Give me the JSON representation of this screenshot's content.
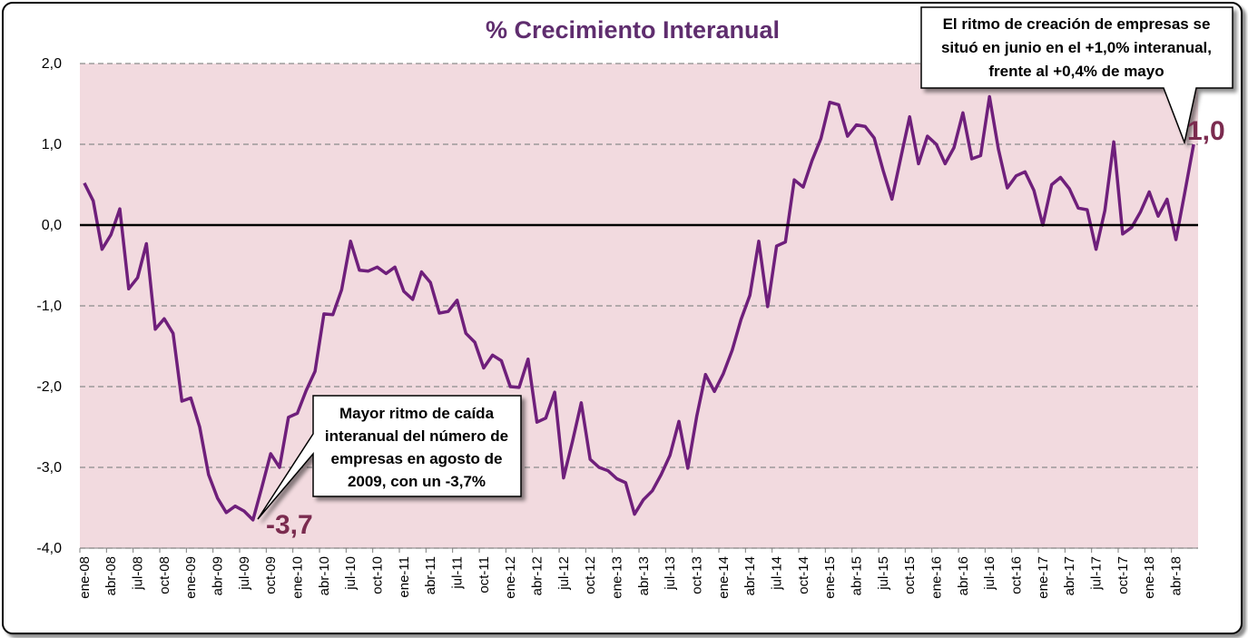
{
  "chart_data": {
    "type": "line",
    "title": "% Crecimiento Interanual",
    "xlabel": "",
    "ylabel": "",
    "ylim": [
      -4.0,
      2.0
    ],
    "yticks": [
      "2,0",
      "1,0",
      "0,0",
      "-1,0",
      "-2,0",
      "-3,0",
      "-4,0"
    ],
    "grid": "horizontal dashed",
    "legend": "none",
    "x_tick_labels": [
      "ene-08",
      "abr-08",
      "jul-08",
      "oct-08",
      "ene-09",
      "abr-09",
      "jul-09",
      "oct-09",
      "ene-10",
      "abr-10",
      "jul-10",
      "oct-10",
      "ene-11",
      "abr-11",
      "jul-11",
      "oct-11",
      "ene-12",
      "abr-12",
      "jul-12",
      "oct-12",
      "ene-13",
      "abr-13",
      "jul-13",
      "oct-13",
      "ene-14",
      "abr-14",
      "jul-14",
      "oct-14",
      "ene-15",
      "abr-15",
      "jul-15",
      "oct-15",
      "ene-16",
      "abr-16",
      "jul-16",
      "oct-16",
      "ene-17",
      "abr-17",
      "jul-17",
      "oct-17",
      "ene-18",
      "abr-18"
    ],
    "x_start": "ene-08",
    "x_end": "jun-18",
    "series": [
      {
        "color": "#6f1f7b",
        "values": [
          0.52,
          0.3,
          -0.3,
          -0.12,
          0.2,
          -0.79,
          -0.65,
          -0.23,
          -1.29,
          -1.16,
          -1.34,
          -2.18,
          -2.14,
          -2.5,
          -3.09,
          -3.38,
          -3.56,
          -3.48,
          -3.54,
          -3.65,
          -3.25,
          -2.83,
          -3.0,
          -2.38,
          -2.33,
          -2.05,
          -1.81,
          -1.1,
          -1.11,
          -0.8,
          -0.2,
          -0.56,
          -0.57,
          -0.52,
          -0.6,
          -0.52,
          -0.82,
          -0.92,
          -0.58,
          -0.71,
          -1.09,
          -1.07,
          -0.93,
          -1.34,
          -1.45,
          -1.77,
          -1.61,
          -1.68,
          -2.0,
          -2.01,
          -1.66,
          -2.44,
          -2.39,
          -2.07,
          -3.13,
          -2.68,
          -2.2,
          -2.9,
          -3.0,
          -3.04,
          -3.14,
          -3.19,
          -3.58,
          -3.4,
          -3.29,
          -3.09,
          -2.85,
          -2.43,
          -3.01,
          -2.37,
          -1.85,
          -2.06,
          -1.84,
          -1.55,
          -1.17,
          -0.87,
          -0.2,
          -1.01,
          -0.26,
          -0.21,
          0.56,
          0.47,
          0.8,
          1.07,
          1.52,
          1.49,
          1.1,
          1.24,
          1.22,
          1.08,
          0.68,
          0.32,
          0.83,
          1.34,
          0.76,
          1.1,
          1.0,
          0.76,
          0.96,
          1.39,
          0.82,
          0.86,
          1.59,
          0.94,
          0.46,
          0.61,
          0.66,
          0.43,
          0.0,
          0.5,
          0.59,
          0.45,
          0.21,
          0.19,
          -0.3,
          0.18,
          1.03,
          -0.11,
          -0.03,
          0.16,
          0.41,
          0.11,
          0.32,
          -0.18,
          0.4,
          1.0
        ]
      }
    ],
    "annotations": [
      {
        "label": "-3,7",
        "at": "ago-09",
        "value": -3.7
      },
      {
        "label": "1,0",
        "at": "jun-18",
        "value": 1.0
      }
    ],
    "callouts": {
      "low": {
        "lines": [
          "Mayor ritmo de caída",
          "interanual del número de",
          "empresas en agosto de",
          "2009, con un -3,7%"
        ]
      },
      "latest": {
        "lines": [
          "El ritmo de creación de empresas se",
          "situó en junio en el +1,0% interanual,",
          "frente al +0,4% de mayo"
        ]
      }
    },
    "colors": {
      "plot_background": "#f2dadf",
      "line": "#6f1f7b",
      "title": "#5f2d6e",
      "value_labels": "#7b2b4f",
      "grid": "#8c8c8c",
      "zero_line": "#000000"
    }
  }
}
